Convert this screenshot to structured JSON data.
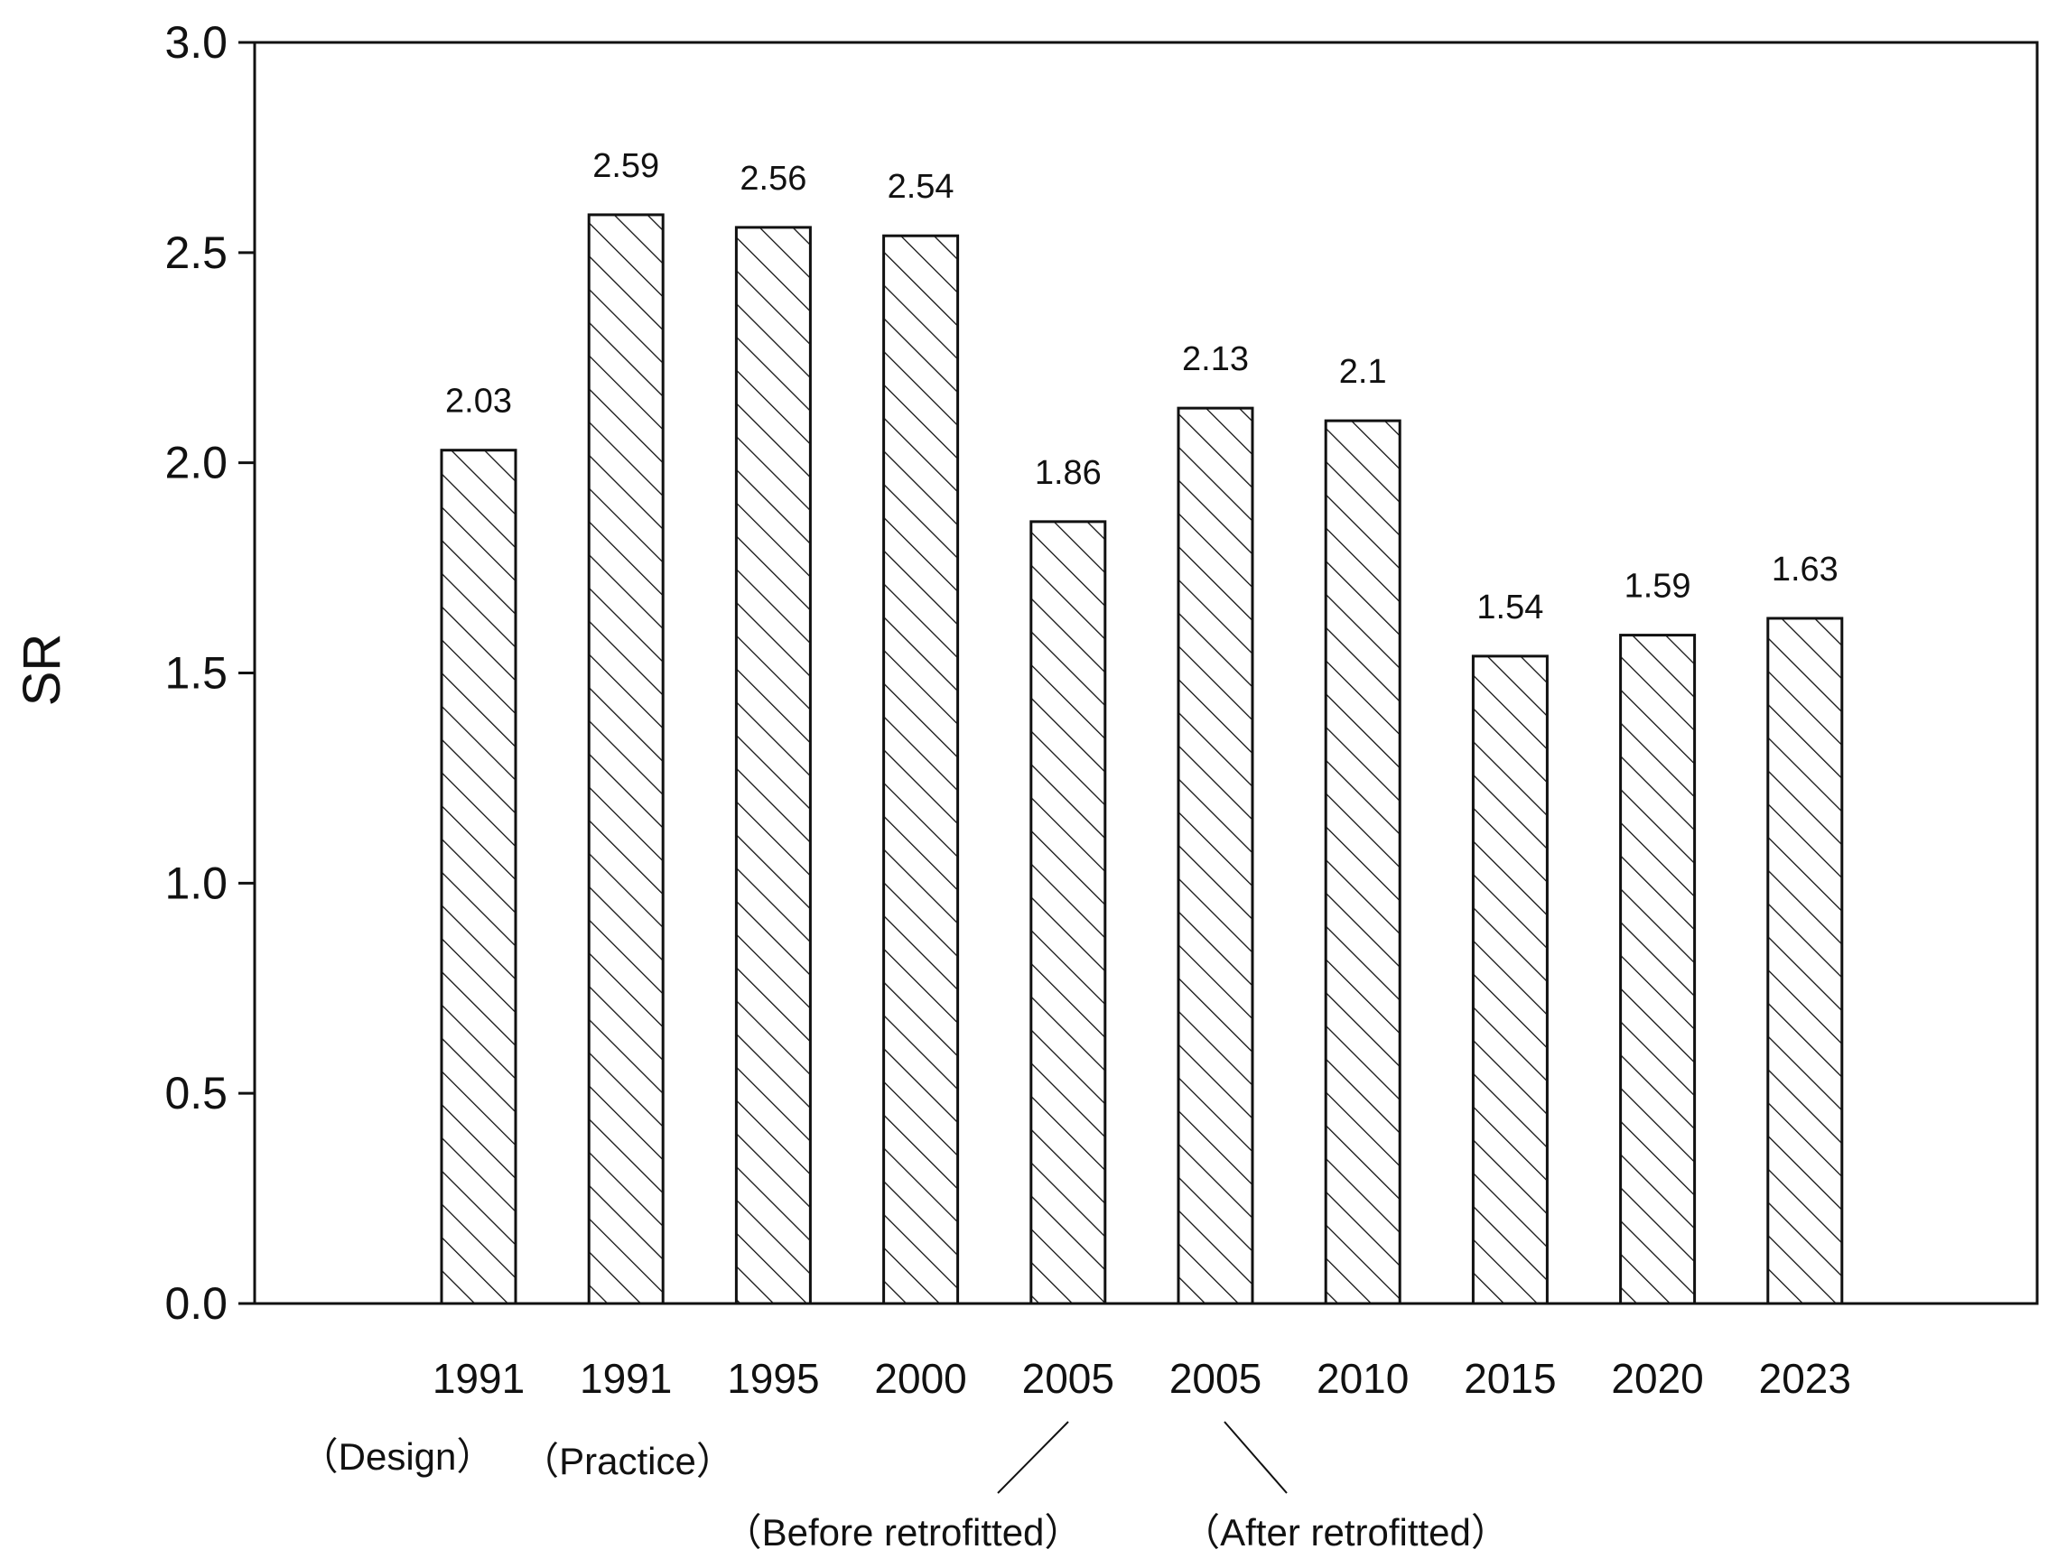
{
  "chart_data": {
    "type": "bar",
    "ylabel": "SR",
    "xlabel": "",
    "ylim": [
      0,
      3.0
    ],
    "yticks": [
      "0.0",
      "0.5",
      "1.0",
      "1.5",
      "2.0",
      "2.5",
      "3.0"
    ],
    "grid": false,
    "bar_fill": "hatched",
    "categories": [
      "1991",
      "1991",
      "1995",
      "2000",
      "2005",
      "2005",
      "2010",
      "2015",
      "2020",
      "2023"
    ],
    "values": [
      2.03,
      2.59,
      2.56,
      2.54,
      1.86,
      2.13,
      2.1,
      1.54,
      1.59,
      1.63
    ],
    "value_labels": [
      "2.03",
      "2.59",
      "2.56",
      "2.54",
      "1.86",
      "2.13",
      "2.1",
      "1.54",
      "1.59",
      "1.63"
    ],
    "annotations": [
      {
        "text": "（Design）",
        "category_index": 0
      },
      {
        "text": "（Practice）",
        "category_index": 1
      },
      {
        "text": "（Before retrofitted）",
        "category_index": 4
      },
      {
        "text": "（After retrofitted）",
        "category_index": 5
      }
    ]
  }
}
